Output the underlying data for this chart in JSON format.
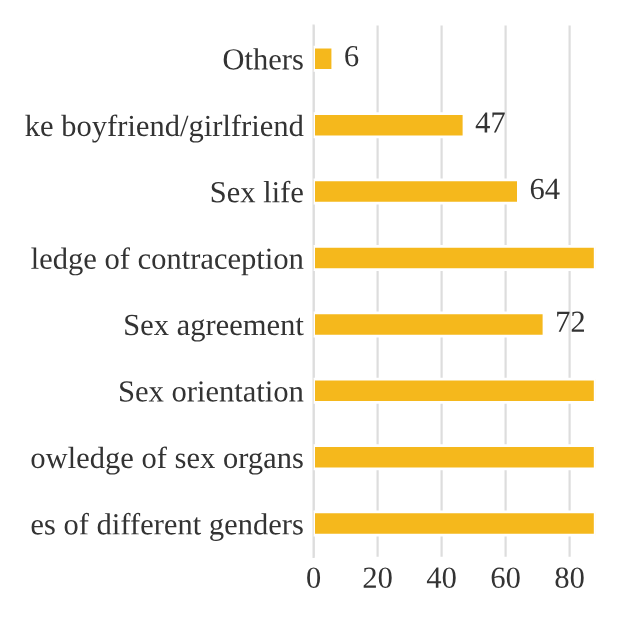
{
  "chart_data": {
    "type": "bar",
    "orientation": "horizontal",
    "categories": [
      "Others",
      "ke boyfriend/girlfriend",
      "Sex life",
      "ledge of contraception",
      "Sex agreement",
      "Sex orientation",
      "owledge of sex organs",
      "es of different genders"
    ],
    "values": [
      6,
      47,
      64,
      88,
      72,
      88,
      88,
      88
    ],
    "value_labels": [
      "6",
      "47",
      "64",
      null,
      "72",
      null,
      null,
      null
    ],
    "color": "#f5b81c",
    "xlim": [
      0,
      88
    ],
    "xticks": [
      0,
      20,
      40,
      60,
      80
    ],
    "grid": "x",
    "legend": false
  }
}
